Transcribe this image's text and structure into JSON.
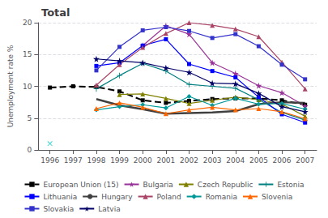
{
  "chart_data": {
    "type": "line",
    "title": "Total",
    "ylabel": "Unemployment rate %",
    "x": [
      1996,
      1997,
      1998,
      1999,
      2000,
      2001,
      2002,
      2003,
      2004,
      2005,
      2006,
      2007
    ],
    "xlim": [
      1995.5,
      2007.5
    ],
    "xticks": [
      1996,
      1997,
      1998,
      1999,
      2000,
      2001,
      2002,
      2003,
      2004,
      2005,
      2006,
      2007
    ],
    "ylim": [
      0,
      20
    ],
    "yticks": [
      0,
      5,
      10,
      15,
      20
    ],
    "grid": true,
    "legend": "bottom",
    "series": [
      {
        "name": "European Union (15)",
        "color": "#000000",
        "marker": "square",
        "line_style": "dashed",
        "values": [
          9.8,
          10.0,
          9.9,
          9.2,
          7.8,
          7.4,
          7.7,
          8.0,
          8.1,
          8.1,
          7.8,
          7.1
        ]
      },
      {
        "name": "Bulgaria",
        "color": "#993399",
        "marker": "star",
        "line_style": "solid",
        "values": [
          null,
          null,
          null,
          null,
          16.4,
          19.5,
          18.2,
          13.7,
          12.0,
          10.1,
          9.0,
          6.9
        ]
      },
      {
        "name": "Czech Republic",
        "color": "#808000",
        "marker": "triangle",
        "line_style": "solid",
        "values": [
          null,
          null,
          null,
          8.7,
          8.8,
          8.1,
          7.3,
          7.8,
          8.3,
          7.9,
          7.2,
          5.3
        ]
      },
      {
        "name": "Estonia",
        "color": "#008080",
        "marker": "plus",
        "line_style": "solid",
        "values": [
          null,
          null,
          9.6,
          11.7,
          13.6,
          12.4,
          10.3,
          10.0,
          9.7,
          7.9,
          5.9,
          4.7
        ]
      },
      {
        "name": "Lithuania",
        "color": "#0000ff",
        "marker": "square",
        "line_style": "solid",
        "values": [
          null,
          null,
          13.2,
          13.7,
          16.4,
          17.4,
          13.5,
          12.4,
          11.4,
          8.3,
          5.6,
          4.3
        ]
      },
      {
        "name": "Hungary",
        "color": "#404040",
        "marker": "none",
        "line_style": "solid",
        "values": [
          null,
          null,
          8.0,
          7.0,
          6.4,
          5.7,
          5.8,
          5.9,
          6.1,
          7.2,
          7.5,
          7.4
        ]
      },
      {
        "name": "Poland",
        "color": "#aa4466",
        "marker": "triangle",
        "line_style": "solid",
        "values": [
          null,
          null,
          10.2,
          13.4,
          16.1,
          18.3,
          20.0,
          19.6,
          19.0,
          17.8,
          13.8,
          9.6
        ]
      },
      {
        "name": "Romania",
        "color": "#009999",
        "marker": "diamond",
        "line_style": "solid",
        "values": [
          null,
          null,
          6.3,
          6.8,
          7.1,
          6.6,
          8.4,
          7.0,
          8.1,
          7.2,
          7.3,
          6.4
        ]
      },
      {
        "name": "Slovenia",
        "color": "#ff6600",
        "marker": "triangle",
        "line_style": "solid",
        "values": [
          null,
          null,
          6.5,
          7.4,
          6.7,
          5.7,
          6.3,
          6.7,
          6.3,
          6.5,
          6.0,
          4.9
        ]
      },
      {
        "name": "Slovakia",
        "color": "#3333cc",
        "marker": "square",
        "line_style": "solid",
        "values": [
          null,
          null,
          12.5,
          16.2,
          18.8,
          19.3,
          18.7,
          17.6,
          18.2,
          16.3,
          13.4,
          11.1
        ]
      },
      {
        "name": "Latvia",
        "color": "#000066",
        "marker": "star",
        "line_style": "solid",
        "values": [
          null,
          null,
          14.3,
          14.0,
          13.7,
          12.9,
          12.2,
          10.5,
          10.4,
          8.9,
          6.8,
          6.0
        ]
      },
      {
        "type": "scatter",
        "color": "#00cccc",
        "marker": "x",
        "x": [
          1996
        ],
        "values": [
          1.0
        ]
      }
    ]
  }
}
